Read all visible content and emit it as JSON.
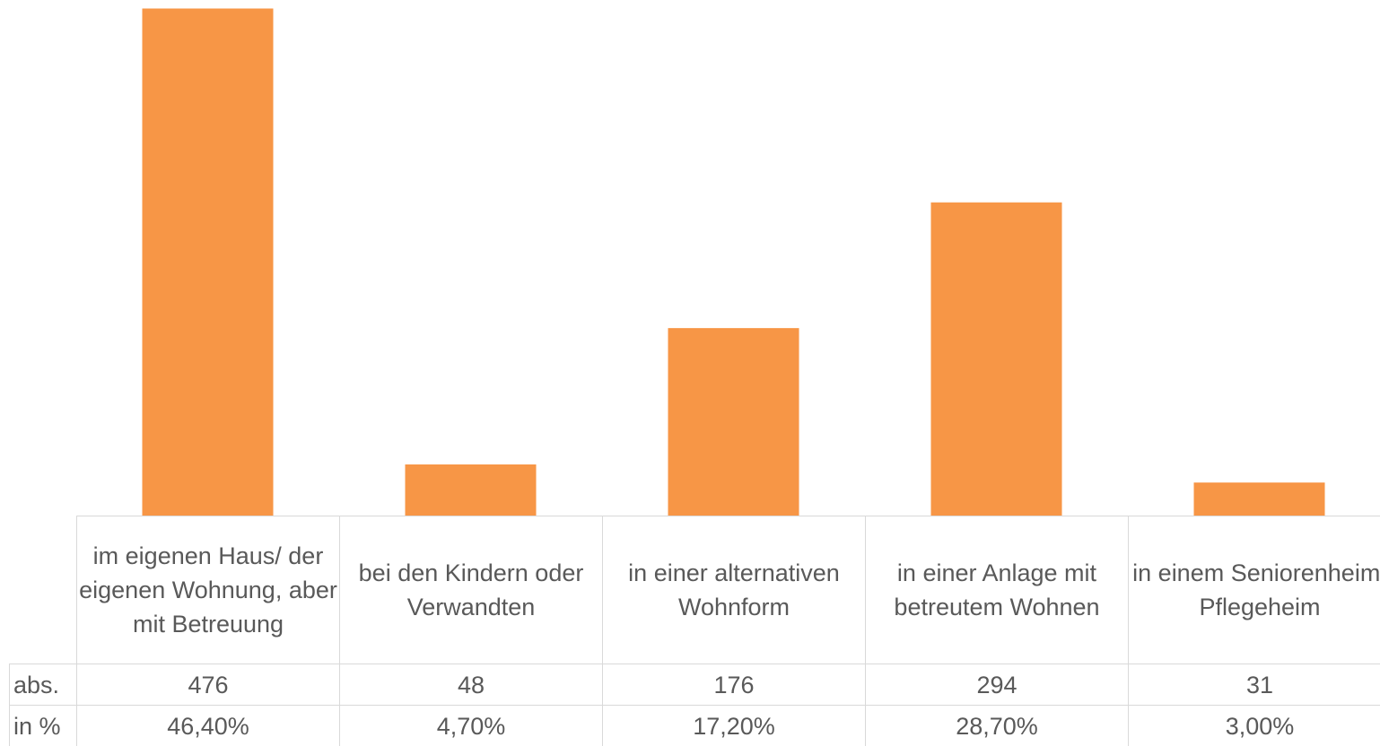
{
  "chart_data": {
    "type": "bar",
    "categories": [
      "im eigenen Haus/ der eigenen Wohnung, aber mit Betreuung",
      "bei den Kindern oder Verwandten",
      "in einer alternativen Wohnform",
      "in einer Anlage mit betreutem Wohnen",
      "in einem Seniorenheim/ Pflegeheim"
    ],
    "series": [
      {
        "name": "abs.",
        "color": "#f79646",
        "values": [
          476,
          48,
          176,
          294,
          31
        ]
      }
    ],
    "data_table": {
      "rows": [
        {
          "name": "in %",
          "values": [
            46.4,
            4.7,
            17.2,
            28.7,
            3.0
          ],
          "value_labels": [
            "46,40%",
            "4,70%",
            "17,20%",
            "28,70%",
            "3,00%"
          ]
        }
      ]
    },
    "ylim": [
      0,
      484
    ]
  }
}
